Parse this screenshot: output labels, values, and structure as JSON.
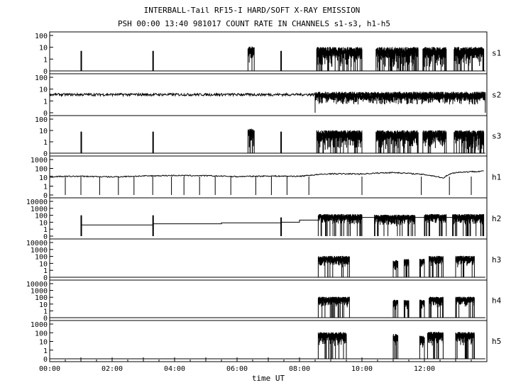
{
  "header": {
    "title": "INTERBALL-Tail RF15-I HARD/SOFT X-RAY EMISSION",
    "subtitle": "PSH 00:00 13:40 981017  COUNT RATE IN CHANNELS s1-s3, h1-h5"
  },
  "xaxis": {
    "label": "time UT",
    "range_hours": [
      0,
      14
    ],
    "ticks": [
      {
        "h": 0,
        "label": "00:00"
      },
      {
        "h": 2,
        "label": "02:00"
      },
      {
        "h": 4,
        "label": "04:00"
      },
      {
        "h": 6,
        "label": "06:00"
      },
      {
        "h": 8,
        "label": "08:00"
      },
      {
        "h": 10,
        "label": "10:00"
      },
      {
        "h": 12,
        "label": "12:00"
      }
    ]
  },
  "chart_data": {
    "type": "line",
    "title": "INTERBALL-Tail RF15-I HARD/SOFT X-RAY EMISSION",
    "subtitle": "PSH 00:00 13:40 981017  COUNT RATE IN CHANNELS s1-s3, h1-h5",
    "xlabel": "time UT",
    "x_unit": "hours UT",
    "xlim": [
      0,
      14
    ],
    "y_scale": "log",
    "grid": false,
    "series": [
      {
        "name": "s1",
        "ylim": [
          0,
          100
        ],
        "tick_labels": [
          "0",
          "1",
          "10",
          "100"
        ],
        "baseline": 0,
        "spikes": [
          {
            "t": 1.0,
            "v": 5
          },
          {
            "t": 3.3,
            "v": 5
          },
          {
            "t": 7.4,
            "v": 5
          }
        ],
        "bursts": [
          {
            "t0": 6.35,
            "t1": 6.55,
            "v": 8
          },
          {
            "t0": 8.55,
            "t1": 10.0,
            "v": 7
          },
          {
            "t0": 10.45,
            "t1": 11.8,
            "v": 7
          },
          {
            "t0": 11.95,
            "t1": 12.7,
            "v": 7
          },
          {
            "t0": 12.95,
            "t1": 13.9,
            "v": 7
          }
        ]
      },
      {
        "name": "s2",
        "ylim": [
          0,
          100
        ],
        "tick_labels": [
          "0",
          "1",
          "10",
          "100"
        ],
        "baseline": 3.5,
        "spikes": [],
        "bursts": [
          {
            "t0": 8.5,
            "t1": 13.95,
            "v": 4
          }
        ]
      },
      {
        "name": "s3",
        "ylim": [
          0,
          100
        ],
        "tick_labels": [
          "0",
          "1",
          "10",
          "100"
        ],
        "baseline": 0,
        "spikes": [
          {
            "t": 1.0,
            "v": 8
          },
          {
            "t": 3.3,
            "v": 8
          },
          {
            "t": 7.4,
            "v": 8
          }
        ],
        "bursts": [
          {
            "t0": 6.35,
            "t1": 6.55,
            "v": 10
          },
          {
            "t0": 8.55,
            "t1": 10.0,
            "v": 7
          },
          {
            "t0": 10.45,
            "t1": 11.8,
            "v": 7
          },
          {
            "t0": 11.95,
            "t1": 12.7,
            "v": 7
          },
          {
            "t0": 12.95,
            "t1": 13.9,
            "v": 7
          }
        ]
      },
      {
        "name": "h1",
        "ylim": [
          0,
          1000
        ],
        "tick_labels": [
          "0",
          "1",
          "10",
          "100",
          "1000"
        ],
        "baseline": 12,
        "trend": [
          [
            0,
            12
          ],
          [
            1.0,
            13
          ],
          [
            2.0,
            11
          ],
          [
            3.0,
            14
          ],
          [
            4.0,
            16
          ],
          [
            5.0,
            15
          ],
          [
            6.0,
            12
          ],
          [
            7.0,
            14
          ],
          [
            8.0,
            13
          ],
          [
            9.0,
            25
          ],
          [
            10.0,
            24
          ],
          [
            11.0,
            35
          ],
          [
            12.0,
            20
          ],
          [
            12.6,
            8
          ],
          [
            13.0,
            35
          ],
          [
            13.9,
            50
          ]
        ],
        "dropouts": [
          0.5,
          1.0,
          1.6,
          2.2,
          2.7,
          3.3,
          3.9,
          4.3,
          4.8,
          5.3,
          5.8,
          6.6,
          7.1,
          7.6,
          8.3,
          10.0,
          11.9,
          12.8,
          13.5
        ]
      },
      {
        "name": "h2",
        "ylim": [
          0,
          10000
        ],
        "tick_labels": [
          "0",
          "1",
          "10",
          "100",
          "1000",
          "10000"
        ],
        "steps": [
          [
            1.0,
            4
          ],
          [
            3.3,
            6
          ],
          [
            5.5,
            8
          ],
          [
            7.4,
            10
          ],
          [
            8.0,
            20
          ],
          [
            8.6,
            50
          ],
          [
            13.9,
            50
          ]
        ],
        "spikes": [
          {
            "t": 1.0,
            "v": 100
          },
          {
            "t": 3.3,
            "v": 100
          },
          {
            "t": 7.4,
            "v": 50
          }
        ],
        "bursts": [
          {
            "t0": 8.6,
            "t1": 10.0,
            "v": 100
          },
          {
            "t0": 10.4,
            "t1": 11.7,
            "v": 80
          },
          {
            "t0": 12.0,
            "t1": 12.7,
            "v": 100
          },
          {
            "t0": 12.9,
            "t1": 13.9,
            "v": 100
          }
        ]
      },
      {
        "name": "h3",
        "ylim": [
          0,
          10000
        ],
        "tick_labels": [
          "0",
          "1",
          "10",
          "100",
          "1000",
          "10000"
        ],
        "baseline": 0,
        "bursts": [
          {
            "t0": 8.6,
            "t1": 9.6,
            "v": 80
          },
          {
            "t0": 11.0,
            "t1": 11.15,
            "v": 20
          },
          {
            "t0": 11.35,
            "t1": 11.5,
            "v": 30
          },
          {
            "t0": 11.85,
            "t1": 12.0,
            "v": 30
          },
          {
            "t0": 12.15,
            "t1": 12.6,
            "v": 80
          },
          {
            "t0": 13.0,
            "t1": 13.6,
            "v": 80
          }
        ]
      },
      {
        "name": "h4",
        "ylim": [
          0,
          10000
        ],
        "tick_labels": [
          "0",
          "1",
          "10",
          "100",
          "1000",
          "10000"
        ],
        "baseline": 0,
        "bursts": [
          {
            "t0": 8.6,
            "t1": 9.6,
            "v": 80
          },
          {
            "t0": 11.0,
            "t1": 11.15,
            "v": 30
          },
          {
            "t0": 11.35,
            "t1": 11.5,
            "v": 30
          },
          {
            "t0": 11.85,
            "t1": 12.0,
            "v": 30
          },
          {
            "t0": 12.15,
            "t1": 12.6,
            "v": 80
          },
          {
            "t0": 13.0,
            "t1": 13.6,
            "v": 80
          }
        ]
      },
      {
        "name": "h5",
        "ylim": [
          0,
          1000
        ],
        "tick_labels": [
          "0",
          "1",
          "10",
          "100",
          "1000"
        ],
        "baseline": 0,
        "bursts": [
          {
            "t0": 8.6,
            "t1": 9.5,
            "v": 80
          },
          {
            "t0": 11.0,
            "t1": 11.15,
            "v": 50
          },
          {
            "t0": 11.85,
            "t1": 12.0,
            "v": 30
          },
          {
            "t0": 12.1,
            "t1": 12.6,
            "v": 90
          },
          {
            "t0": 13.0,
            "t1": 13.6,
            "v": 80
          }
        ]
      }
    ]
  }
}
